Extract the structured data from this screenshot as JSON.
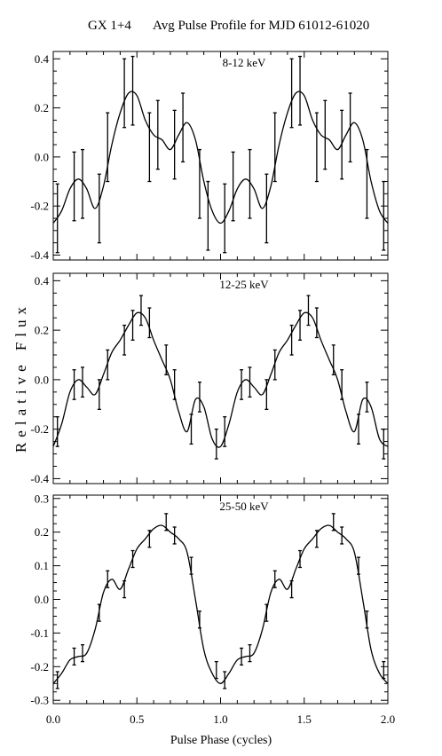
{
  "figure": {
    "title_source": "GX 1+4",
    "title_main": "Avg Pulse Profile for MJD 61012-61020",
    "ylabel": "Relative Flux",
    "xlabel": "Pulse Phase (cycles)"
  },
  "chart_data": [
    {
      "type": "line",
      "band_label": "8-12 keV",
      "xlim": [
        0,
        2
      ],
      "ylim": [
        -0.42,
        0.43
      ],
      "yticks": [
        -0.4,
        -0.2,
        0.0,
        0.2,
        0.4
      ],
      "ytick_labels": [
        "-0.4",
        "-0.2",
        "0.0",
        "0.2",
        "0.4"
      ],
      "xticks": [
        0.0,
        0.5,
        1.0,
        1.5,
        2.0
      ],
      "xtick_labels": [
        "0.0",
        "0.5",
        "1.0",
        "1.5",
        "2.0"
      ],
      "show_xtick_labels": false,
      "points": [
        {
          "x": 0.025,
          "y": -0.25,
          "err": 0.14
        },
        {
          "x": 0.125,
          "y": -0.12,
          "err": 0.14
        },
        {
          "x": 0.175,
          "y": -0.11,
          "err": 0.14
        },
        {
          "x": 0.275,
          "y": -0.21,
          "err": 0.14
        },
        {
          "x": 0.325,
          "y": 0.04,
          "err": 0.14
        },
        {
          "x": 0.425,
          "y": 0.26,
          "err": 0.14
        },
        {
          "x": 0.475,
          "y": 0.27,
          "err": 0.14
        },
        {
          "x": 0.575,
          "y": 0.04,
          "err": 0.14
        },
        {
          "x": 0.625,
          "y": 0.09,
          "err": 0.14
        },
        {
          "x": 0.725,
          "y": 0.05,
          "err": 0.14
        },
        {
          "x": 0.775,
          "y": 0.12,
          "err": 0.14
        },
        {
          "x": 0.875,
          "y": -0.11,
          "err": 0.14
        },
        {
          "x": 0.925,
          "y": -0.24,
          "err": 0.14
        },
        {
          "x": 1.025,
          "y": -0.25,
          "err": 0.14
        },
        {
          "x": 1.075,
          "y": -0.12,
          "err": 0.14
        },
        {
          "x": 1.175,
          "y": -0.11,
          "err": 0.14
        },
        {
          "x": 1.275,
          "y": -0.21,
          "err": 0.14
        },
        {
          "x": 1.325,
          "y": 0.04,
          "err": 0.14
        },
        {
          "x": 1.425,
          "y": 0.26,
          "err": 0.14
        },
        {
          "x": 1.475,
          "y": 0.27,
          "err": 0.14
        },
        {
          "x": 1.575,
          "y": 0.04,
          "err": 0.14
        },
        {
          "x": 1.625,
          "y": 0.09,
          "err": 0.14
        },
        {
          "x": 1.725,
          "y": 0.05,
          "err": 0.14
        },
        {
          "x": 1.775,
          "y": 0.12,
          "err": 0.14
        },
        {
          "x": 1.875,
          "y": -0.11,
          "err": 0.14
        },
        {
          "x": 1.975,
          "y": -0.24,
          "err": 0.14
        }
      ],
      "curve": {
        "x": [
          0.0,
          0.05,
          0.1,
          0.15,
          0.2,
          0.25,
          0.3,
          0.35,
          0.4,
          0.45,
          0.5,
          0.55,
          0.6,
          0.65,
          0.7,
          0.75,
          0.8,
          0.85,
          0.9,
          0.95,
          1.0,
          1.05,
          1.1,
          1.15,
          1.2,
          1.25,
          1.3,
          1.35,
          1.4,
          1.45,
          1.5,
          1.55,
          1.6,
          1.65,
          1.7,
          1.75,
          1.8,
          1.85,
          1.9,
          1.95,
          2.0
        ],
        "y": [
          -0.27,
          -0.22,
          -0.13,
          -0.09,
          -0.13,
          -0.21,
          -0.12,
          0.05,
          0.18,
          0.26,
          0.25,
          0.15,
          0.09,
          0.07,
          0.03,
          0.09,
          0.14,
          0.07,
          -0.1,
          -0.22,
          -0.27,
          -0.22,
          -0.13,
          -0.09,
          -0.13,
          -0.21,
          -0.12,
          0.05,
          0.18,
          0.26,
          0.25,
          0.15,
          0.09,
          0.07,
          0.03,
          0.09,
          0.14,
          0.07,
          -0.1,
          -0.22,
          -0.27
        ]
      }
    },
    {
      "type": "line",
      "band_label": "12-25 keV",
      "xlim": [
        0,
        2
      ],
      "ylim": [
        -0.42,
        0.43
      ],
      "yticks": [
        -0.4,
        -0.2,
        0.0,
        0.2,
        0.4
      ],
      "ytick_labels": [
        "-0.4",
        "-0.2",
        "0.0",
        "0.2",
        "0.4"
      ],
      "xticks": [
        0.0,
        0.5,
        1.0,
        1.5,
        2.0
      ],
      "xtick_labels": [
        "0.0",
        "0.5",
        "1.0",
        "1.5",
        "2.0"
      ],
      "show_xtick_labels": false,
      "points": [
        {
          "x": 0.025,
          "y": -0.21,
          "err": 0.06
        },
        {
          "x": 0.125,
          "y": -0.02,
          "err": 0.06
        },
        {
          "x": 0.175,
          "y": -0.01,
          "err": 0.06
        },
        {
          "x": 0.275,
          "y": -0.06,
          "err": 0.06
        },
        {
          "x": 0.325,
          "y": 0.06,
          "err": 0.06
        },
        {
          "x": 0.425,
          "y": 0.16,
          "err": 0.06
        },
        {
          "x": 0.475,
          "y": 0.22,
          "err": 0.06
        },
        {
          "x": 0.525,
          "y": 0.28,
          "err": 0.06
        },
        {
          "x": 0.575,
          "y": 0.23,
          "err": 0.06
        },
        {
          "x": 0.675,
          "y": 0.08,
          "err": 0.06
        },
        {
          "x": 0.725,
          "y": -0.02,
          "err": 0.06
        },
        {
          "x": 0.825,
          "y": -0.2,
          "err": 0.06
        },
        {
          "x": 0.875,
          "y": -0.07,
          "err": 0.06
        },
        {
          "x": 0.975,
          "y": -0.26,
          "err": 0.06
        },
        {
          "x": 1.025,
          "y": -0.21,
          "err": 0.06
        },
        {
          "x": 1.125,
          "y": -0.02,
          "err": 0.06
        },
        {
          "x": 1.175,
          "y": -0.01,
          "err": 0.06
        },
        {
          "x": 1.275,
          "y": -0.06,
          "err": 0.06
        },
        {
          "x": 1.325,
          "y": 0.06,
          "err": 0.06
        },
        {
          "x": 1.425,
          "y": 0.16,
          "err": 0.06
        },
        {
          "x": 1.475,
          "y": 0.22,
          "err": 0.06
        },
        {
          "x": 1.525,
          "y": 0.28,
          "err": 0.06
        },
        {
          "x": 1.575,
          "y": 0.23,
          "err": 0.06
        },
        {
          "x": 1.675,
          "y": 0.08,
          "err": 0.06
        },
        {
          "x": 1.725,
          "y": -0.02,
          "err": 0.06
        },
        {
          "x": 1.825,
          "y": -0.2,
          "err": 0.06
        },
        {
          "x": 1.875,
          "y": -0.07,
          "err": 0.06
        },
        {
          "x": 1.975,
          "y": -0.26,
          "err": 0.06
        }
      ],
      "curve": {
        "x": [
          0.0,
          0.05,
          0.1,
          0.15,
          0.2,
          0.25,
          0.3,
          0.35,
          0.4,
          0.45,
          0.5,
          0.55,
          0.6,
          0.65,
          0.7,
          0.75,
          0.8,
          0.85,
          0.9,
          0.95,
          1.0,
          1.05,
          1.1,
          1.15,
          1.2,
          1.25,
          1.3,
          1.35,
          1.4,
          1.45,
          1.5,
          1.55,
          1.6,
          1.65,
          1.7,
          1.75,
          1.8,
          1.85,
          1.9,
          1.95,
          2.0
        ],
        "y": [
          -0.27,
          -0.18,
          -0.05,
          0.0,
          -0.03,
          -0.06,
          0.02,
          0.11,
          0.16,
          0.22,
          0.27,
          0.25,
          0.16,
          0.08,
          0.0,
          -0.13,
          -0.21,
          -0.08,
          -0.11,
          -0.24,
          -0.27,
          -0.18,
          -0.05,
          0.0,
          -0.03,
          -0.06,
          0.02,
          0.11,
          0.16,
          0.22,
          0.27,
          0.25,
          0.16,
          0.08,
          0.0,
          -0.13,
          -0.21,
          -0.08,
          -0.11,
          -0.24,
          -0.27
        ]
      }
    },
    {
      "type": "line",
      "band_label": "25-50 keV",
      "xlim": [
        0,
        2
      ],
      "ylim": [
        -0.31,
        0.31
      ],
      "yticks": [
        -0.3,
        -0.2,
        -0.1,
        0.0,
        0.1,
        0.2,
        0.3
      ],
      "ytick_labels": [
        "-0.3",
        "-0.2",
        "-0.1",
        "0.0",
        "0.1",
        "0.2",
        "0.3"
      ],
      "xticks": [
        0.0,
        0.5,
        1.0,
        1.5,
        2.0
      ],
      "xtick_labels": [
        "0.0",
        "0.5",
        "1.0",
        "1.5",
        "2.0"
      ],
      "show_xtick_labels": true,
      "points": [
        {
          "x": 0.025,
          "y": -0.24,
          "err": 0.025
        },
        {
          "x": 0.125,
          "y": -0.17,
          "err": 0.025
        },
        {
          "x": 0.175,
          "y": -0.16,
          "err": 0.025
        },
        {
          "x": 0.275,
          "y": -0.04,
          "err": 0.025
        },
        {
          "x": 0.325,
          "y": 0.06,
          "err": 0.025
        },
        {
          "x": 0.425,
          "y": 0.03,
          "err": 0.025
        },
        {
          "x": 0.475,
          "y": 0.12,
          "err": 0.025
        },
        {
          "x": 0.575,
          "y": 0.18,
          "err": 0.025
        },
        {
          "x": 0.675,
          "y": 0.23,
          "err": 0.025
        },
        {
          "x": 0.725,
          "y": 0.19,
          "err": 0.025
        },
        {
          "x": 0.825,
          "y": 0.1,
          "err": 0.025
        },
        {
          "x": 0.875,
          "y": -0.06,
          "err": 0.025
        },
        {
          "x": 0.975,
          "y": -0.21,
          "err": 0.025
        },
        {
          "x": 1.025,
          "y": -0.24,
          "err": 0.025
        },
        {
          "x": 1.125,
          "y": -0.17,
          "err": 0.025
        },
        {
          "x": 1.175,
          "y": -0.16,
          "err": 0.025
        },
        {
          "x": 1.275,
          "y": -0.04,
          "err": 0.025
        },
        {
          "x": 1.325,
          "y": 0.06,
          "err": 0.025
        },
        {
          "x": 1.425,
          "y": 0.03,
          "err": 0.025
        },
        {
          "x": 1.475,
          "y": 0.12,
          "err": 0.025
        },
        {
          "x": 1.575,
          "y": 0.18,
          "err": 0.025
        },
        {
          "x": 1.675,
          "y": 0.23,
          "err": 0.025
        },
        {
          "x": 1.725,
          "y": 0.19,
          "err": 0.025
        },
        {
          "x": 1.825,
          "y": 0.1,
          "err": 0.025
        },
        {
          "x": 1.875,
          "y": -0.06,
          "err": 0.025
        },
        {
          "x": 1.975,
          "y": -0.21,
          "err": 0.025
        }
      ],
      "curve": {
        "x": [
          0.0,
          0.05,
          0.1,
          0.15,
          0.2,
          0.25,
          0.3,
          0.35,
          0.4,
          0.45,
          0.5,
          0.55,
          0.6,
          0.65,
          0.7,
          0.75,
          0.8,
          0.85,
          0.9,
          0.95,
          1.0,
          1.05,
          1.1,
          1.15,
          1.2,
          1.25,
          1.3,
          1.35,
          1.4,
          1.45,
          1.5,
          1.55,
          1.6,
          1.65,
          1.7,
          1.75,
          1.8,
          1.85,
          1.9,
          1.95,
          2.0
        ],
        "y": [
          -0.25,
          -0.22,
          -0.18,
          -0.17,
          -0.16,
          -0.09,
          0.02,
          0.06,
          0.03,
          0.09,
          0.15,
          0.18,
          0.21,
          0.22,
          0.2,
          0.18,
          0.14,
          0.0,
          -0.15,
          -0.22,
          -0.25,
          -0.22,
          -0.18,
          -0.17,
          -0.16,
          -0.09,
          0.02,
          0.06,
          0.03,
          0.09,
          0.15,
          0.18,
          0.21,
          0.22,
          0.2,
          0.18,
          0.14,
          0.0,
          -0.15,
          -0.22,
          -0.25
        ]
      }
    }
  ]
}
